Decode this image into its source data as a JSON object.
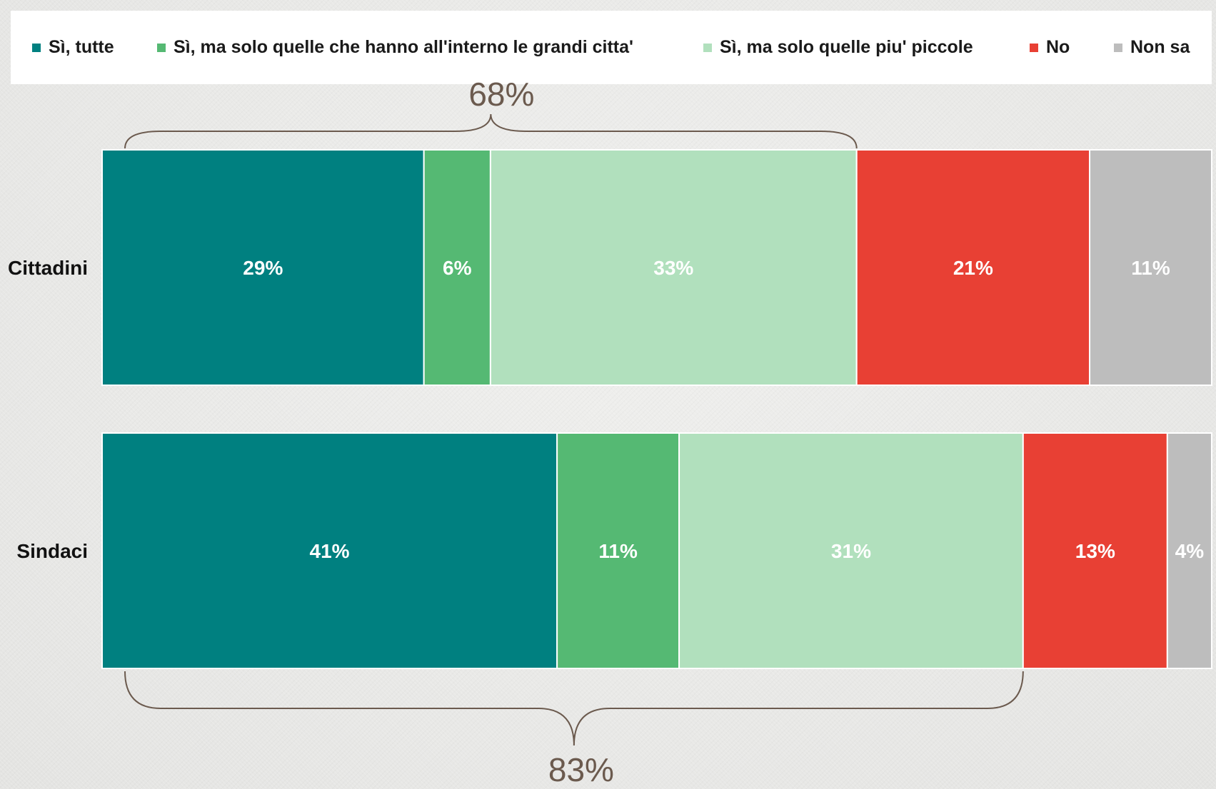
{
  "chart_data": {
    "type": "bar",
    "orientation": "horizontal",
    "stacked": true,
    "categories": [
      "Cittadini",
      "Sindaci"
    ],
    "series": [
      {
        "name": "Sì, tutte",
        "color": "#008080",
        "values": [
          29,
          41
        ],
        "labels": [
          "29%",
          "41%"
        ]
      },
      {
        "name": "Sì, ma solo quelle che hanno all'interno le grandi citta'",
        "color": "#55b973",
        "values": [
          6,
          11
        ],
        "labels": [
          "6%",
          "11%"
        ]
      },
      {
        "name": "Sì, ma solo quelle piu' piccole",
        "color": "#b1e0bd",
        "values": [
          33,
          31
        ],
        "labels": [
          "33%",
          "31%"
        ]
      },
      {
        "name": "No",
        "color": "#e84034",
        "values": [
          21,
          13
        ],
        "labels": [
          "21%",
          "13%"
        ]
      },
      {
        "name": "Non sa",
        "color": "#bdbdbd",
        "values": [
          11,
          4
        ],
        "labels": [
          "11%",
          "4%"
        ]
      }
    ],
    "xlim": [
      0,
      100
    ],
    "legend_position": "top",
    "grid": false,
    "annotations": [
      {
        "category": "Cittadini",
        "text": "68%",
        "placement": "above"
      },
      {
        "category": "Sindaci",
        "text": "83%",
        "placement": "below"
      }
    ]
  }
}
